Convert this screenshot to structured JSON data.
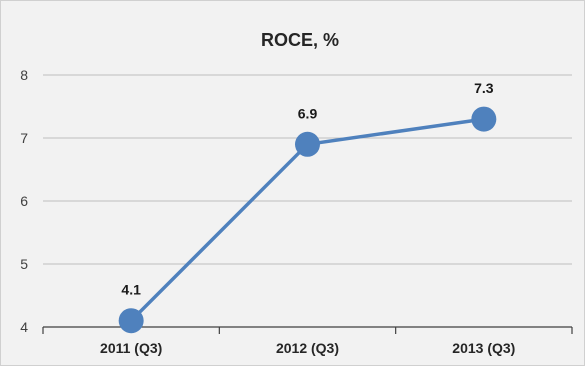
{
  "chart_data": {
    "type": "line",
    "title": "ROCE, %",
    "categories": [
      "2011 (Q3)",
      "2012 (Q3)",
      "2013 (Q3)"
    ],
    "series": [
      {
        "values": [
          4.1,
          6.9,
          7.3
        ],
        "color": "#4f81bd"
      }
    ],
    "data_labels": [
      "4.1",
      "6.9",
      "7.3"
    ],
    "xlabel": "",
    "ylabel": "",
    "ylim": [
      4,
      8
    ],
    "yticks": [
      "4",
      "5",
      "6",
      "7",
      "8"
    ],
    "grid": true,
    "legend": "none"
  }
}
